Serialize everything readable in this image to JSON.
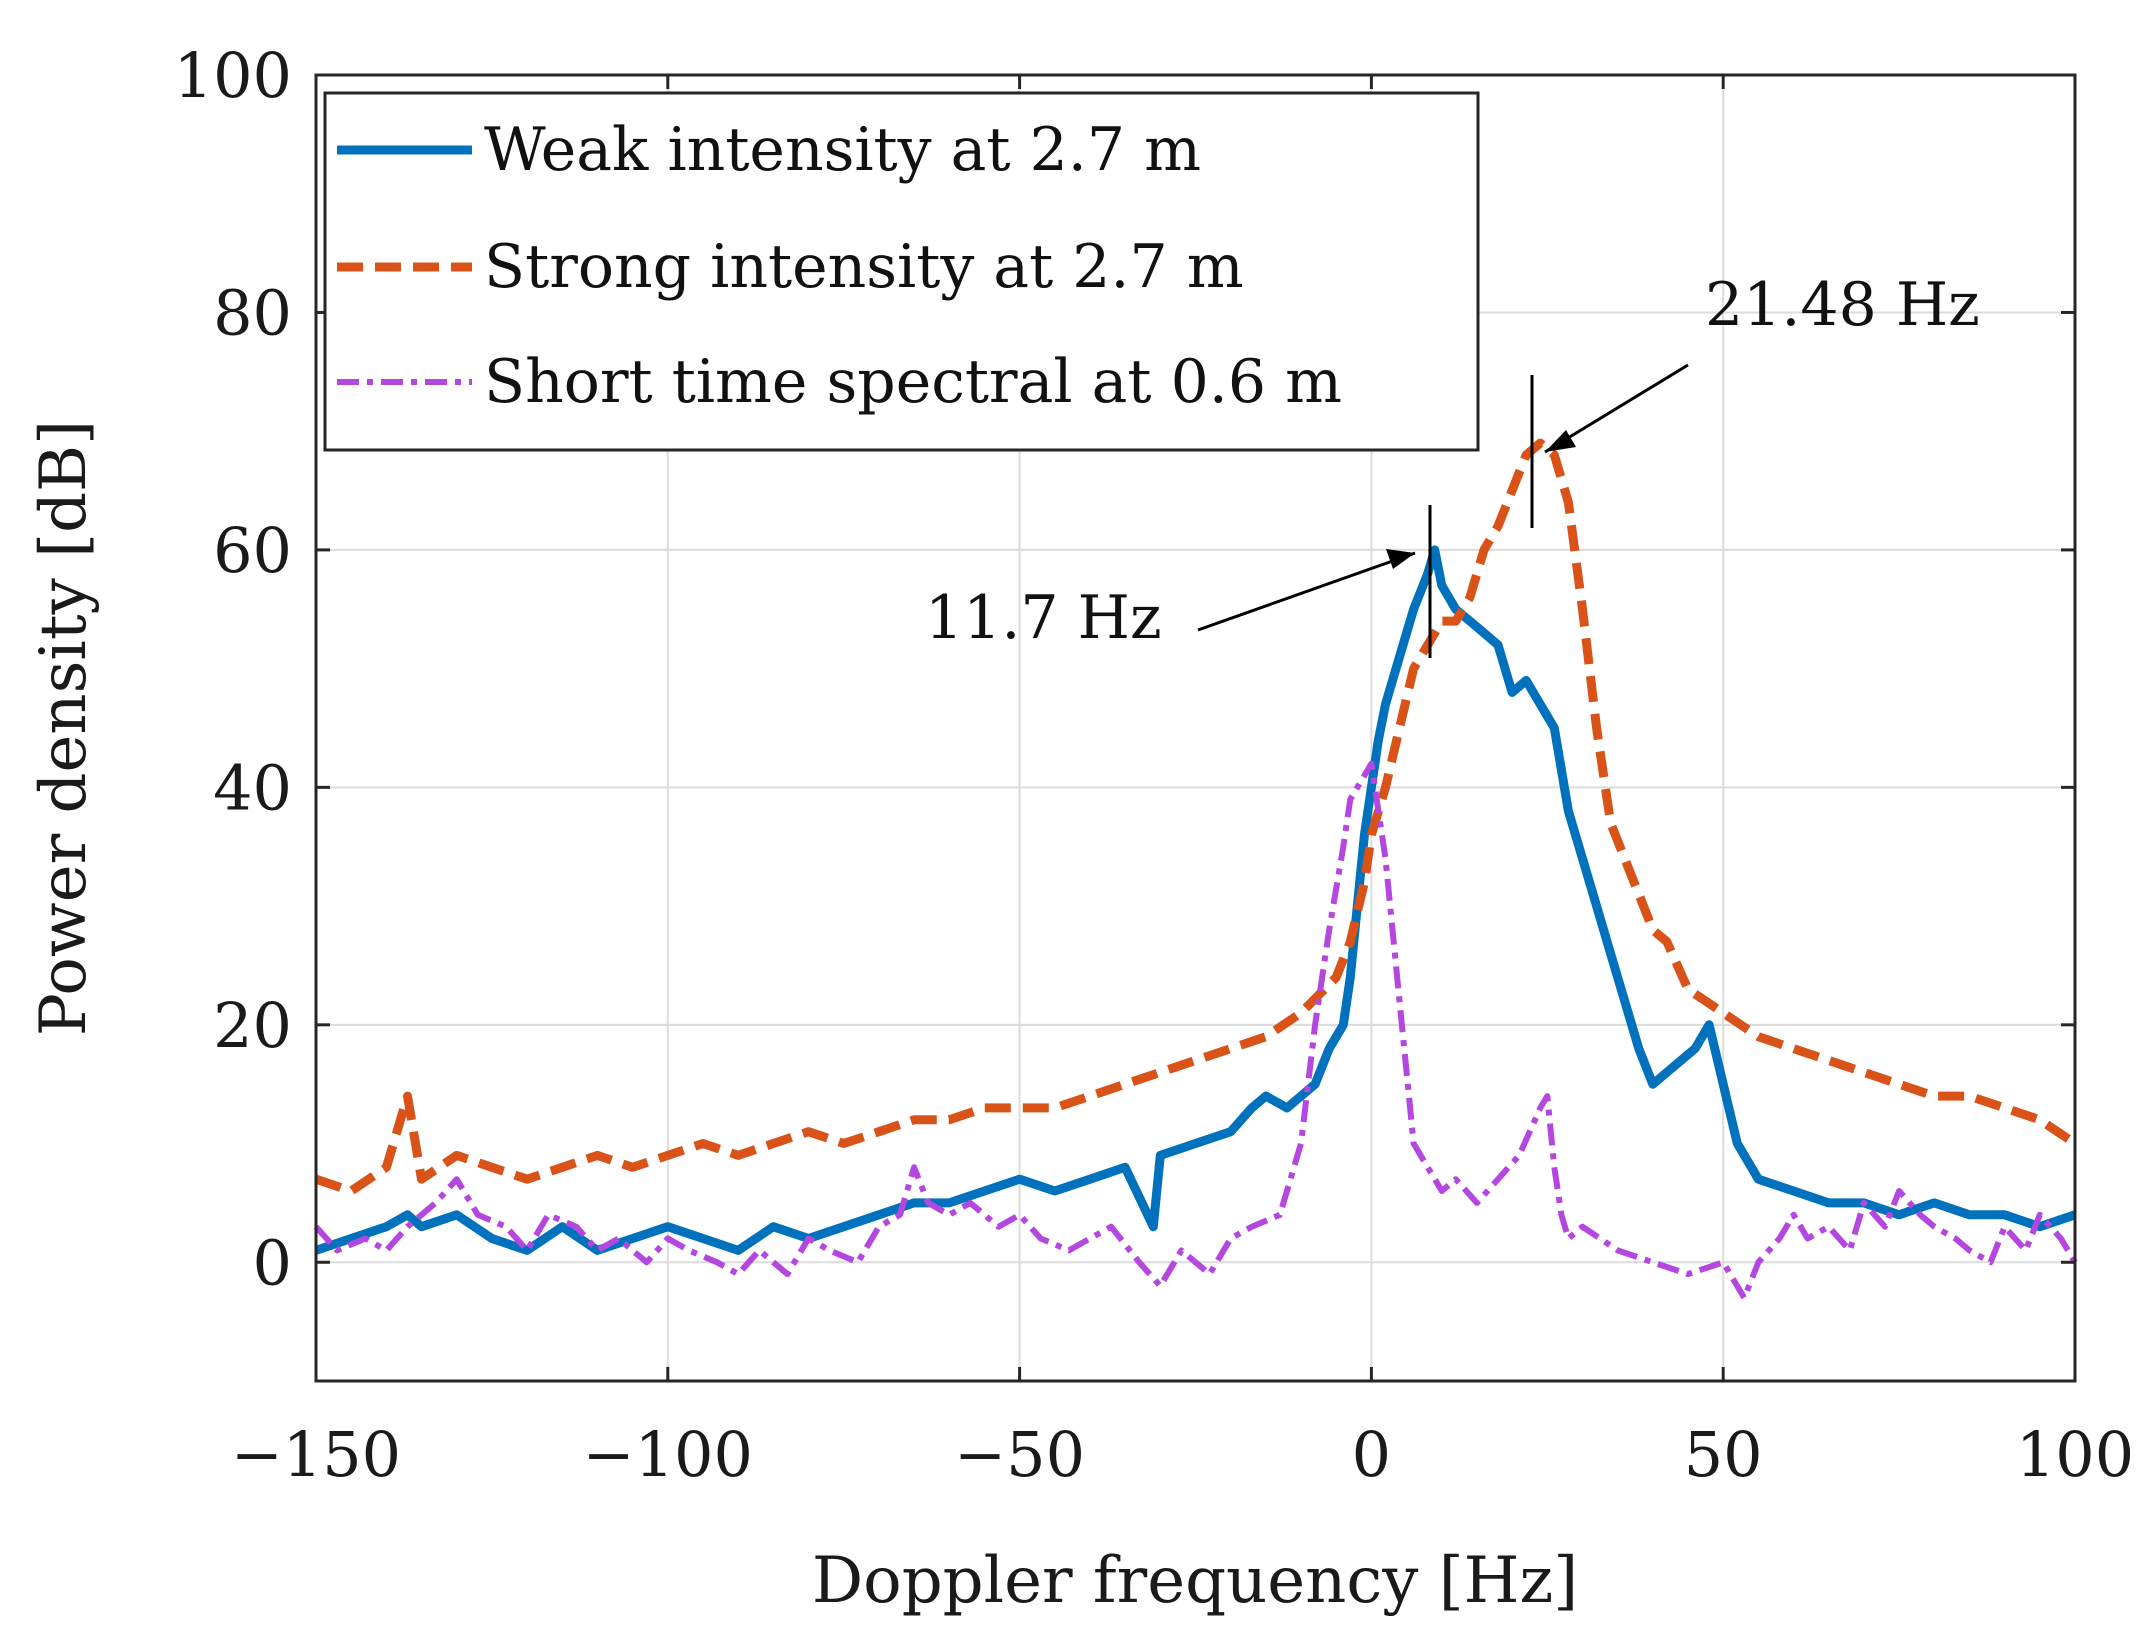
{
  "chart_data": {
    "type": "line",
    "title": "",
    "xlabel": "Doppler frequency [Hz]",
    "ylabel": "Power density [dB]",
    "xlim": [
      -150,
      100
    ],
    "ylim": [
      -10,
      100
    ],
    "xticks": [
      -150,
      -100,
      -50,
      0,
      50,
      100
    ],
    "yticks": [
      0,
      20,
      40,
      60,
      80,
      100
    ],
    "xtick_labels": [
      "−150",
      "−100",
      "−50",
      "0",
      "50",
      "100"
    ],
    "ytick_labels": [
      "0",
      "20",
      "40",
      "60",
      "80",
      "100"
    ],
    "grid": true,
    "legend_position": "top-left",
    "series": [
      {
        "name": "Weak intensity at 2.7 m",
        "color": "#0072BD",
        "style": "solid",
        "x": [
          -150,
          -145,
          -140,
          -137,
          -135,
          -130,
          -125,
          -120,
          -115,
          -110,
          -105,
          -100,
          -95,
          -90,
          -85,
          -80,
          -75,
          -70,
          -65,
          -60,
          -55,
          -50,
          -45,
          -40,
          -35,
          -31,
          -30,
          -25,
          -20,
          -17,
          -15,
          -12,
          -10,
          -8,
          -6,
          -4,
          -3,
          -2,
          -1,
          0,
          1,
          2,
          4,
          6,
          8,
          9,
          10,
          12,
          14,
          16,
          18,
          20,
          22,
          24,
          26,
          28,
          30,
          32,
          34,
          36,
          38,
          40,
          42,
          44,
          46,
          48,
          50,
          52,
          55,
          60,
          65,
          70,
          75,
          80,
          85,
          90,
          95,
          100
        ],
        "values": [
          1,
          2,
          3,
          4,
          3,
          4,
          2,
          1,
          3,
          1,
          2,
          3,
          2,
          1,
          3,
          2,
          3,
          4,
          5,
          5,
          6,
          7,
          6,
          7,
          8,
          3,
          9,
          10,
          11,
          13,
          14,
          13,
          14,
          15,
          18,
          20,
          24,
          30,
          36,
          40,
          44,
          47,
          51,
          55,
          58,
          60,
          57,
          55,
          54,
          53,
          52,
          48,
          49,
          47,
          45,
          38,
          34,
          30,
          26,
          22,
          18,
          15,
          16,
          17,
          18,
          20,
          15,
          10,
          7,
          6,
          5,
          5,
          4,
          5,
          4,
          4,
          3,
          4
        ]
      },
      {
        "name": "Strong intensity at 2.7 m",
        "color": "#D95319",
        "style": "dashed",
        "x": [
          -150,
          -145,
          -140,
          -137,
          -135,
          -130,
          -125,
          -120,
          -115,
          -110,
          -105,
          -100,
          -95,
          -90,
          -85,
          -80,
          -75,
          -70,
          -65,
          -60,
          -55,
          -50,
          -45,
          -40,
          -35,
          -30,
          -25,
          -20,
          -15,
          -10,
          -5,
          -3,
          -1,
          0,
          2,
          4,
          6,
          8,
          10,
          12,
          14,
          16,
          18,
          20,
          22,
          24,
          26,
          28,
          30,
          32,
          34,
          36,
          38,
          40,
          42,
          45,
          50,
          55,
          60,
          65,
          70,
          75,
          80,
          85,
          90,
          95,
          100
        ],
        "values": [
          7,
          6,
          8,
          14,
          7,
          9,
          8,
          7,
          8,
          9,
          8,
          9,
          10,
          9,
          10,
          11,
          10,
          11,
          12,
          12,
          13,
          13,
          13,
          14,
          15,
          16,
          17,
          18,
          19,
          21,
          24,
          27,
          32,
          36,
          40,
          45,
          50,
          52,
          54,
          54,
          56,
          60,
          62,
          65,
          68,
          69,
          68,
          64,
          55,
          45,
          37,
          34,
          31,
          28,
          27,
          23,
          21,
          19,
          18,
          17,
          16,
          15,
          14,
          14,
          13,
          12,
          10
        ]
      },
      {
        "name": "Short time spectral at 0.6 m",
        "color": "#B347E0",
        "style": "dash-dot",
        "x": [
          -150,
          -147,
          -143,
          -140,
          -137,
          -133,
          -130,
          -127,
          -123,
          -120,
          -117,
          -113,
          -110,
          -107,
          -103,
          -100,
          -97,
          -93,
          -90,
          -87,
          -83,
          -80,
          -77,
          -73,
          -70,
          -67,
          -65,
          -63,
          -60,
          -57,
          -53,
          -50,
          -47,
          -43,
          -40,
          -37,
          -33,
          -30,
          -27,
          -23,
          -20,
          -17,
          -13,
          -10,
          -8,
          -6,
          -4,
          -3,
          -2,
          -1,
          0,
          1,
          2,
          3,
          4,
          5,
          6,
          8,
          10,
          12,
          15,
          18,
          21,
          24,
          25,
          26,
          27,
          28,
          30,
          35,
          40,
          45,
          50,
          53,
          55,
          58,
          60,
          62,
          65,
          68,
          70,
          73,
          75,
          78,
          80,
          83,
          85,
          88,
          90,
          93,
          95,
          98,
          100
        ],
        "values": [
          3,
          1,
          2,
          1,
          3,
          5,
          7,
          4,
          3,
          1,
          4,
          3,
          1,
          2,
          0,
          2,
          1,
          0,
          -1,
          1,
          -1,
          2,
          1,
          0,
          3,
          4,
          8,
          5,
          4,
          5,
          3,
          4,
          2,
          1,
          2,
          3,
          0,
          -2,
          1,
          -1,
          2,
          3,
          4,
          10,
          20,
          28,
          35,
          39,
          40,
          41,
          42,
          38,
          34,
          28,
          22,
          16,
          10,
          8,
          6,
          7,
          5,
          7,
          9,
          13,
          14,
          8,
          4,
          2,
          3,
          1,
          0,
          -1,
          0,
          -3,
          0,
          2,
          4,
          2,
          3,
          1,
          5,
          3,
          6,
          4,
          3,
          2,
          1,
          0,
          3,
          1,
          4,
          2,
          0
        ]
      }
    ],
    "annotations": [
      {
        "label": "21.48 Hz",
        "x": 21.48,
        "y": 68
      },
      {
        "label": "11.7 Hz",
        "x": 11.7,
        "y": 60
      }
    ]
  }
}
